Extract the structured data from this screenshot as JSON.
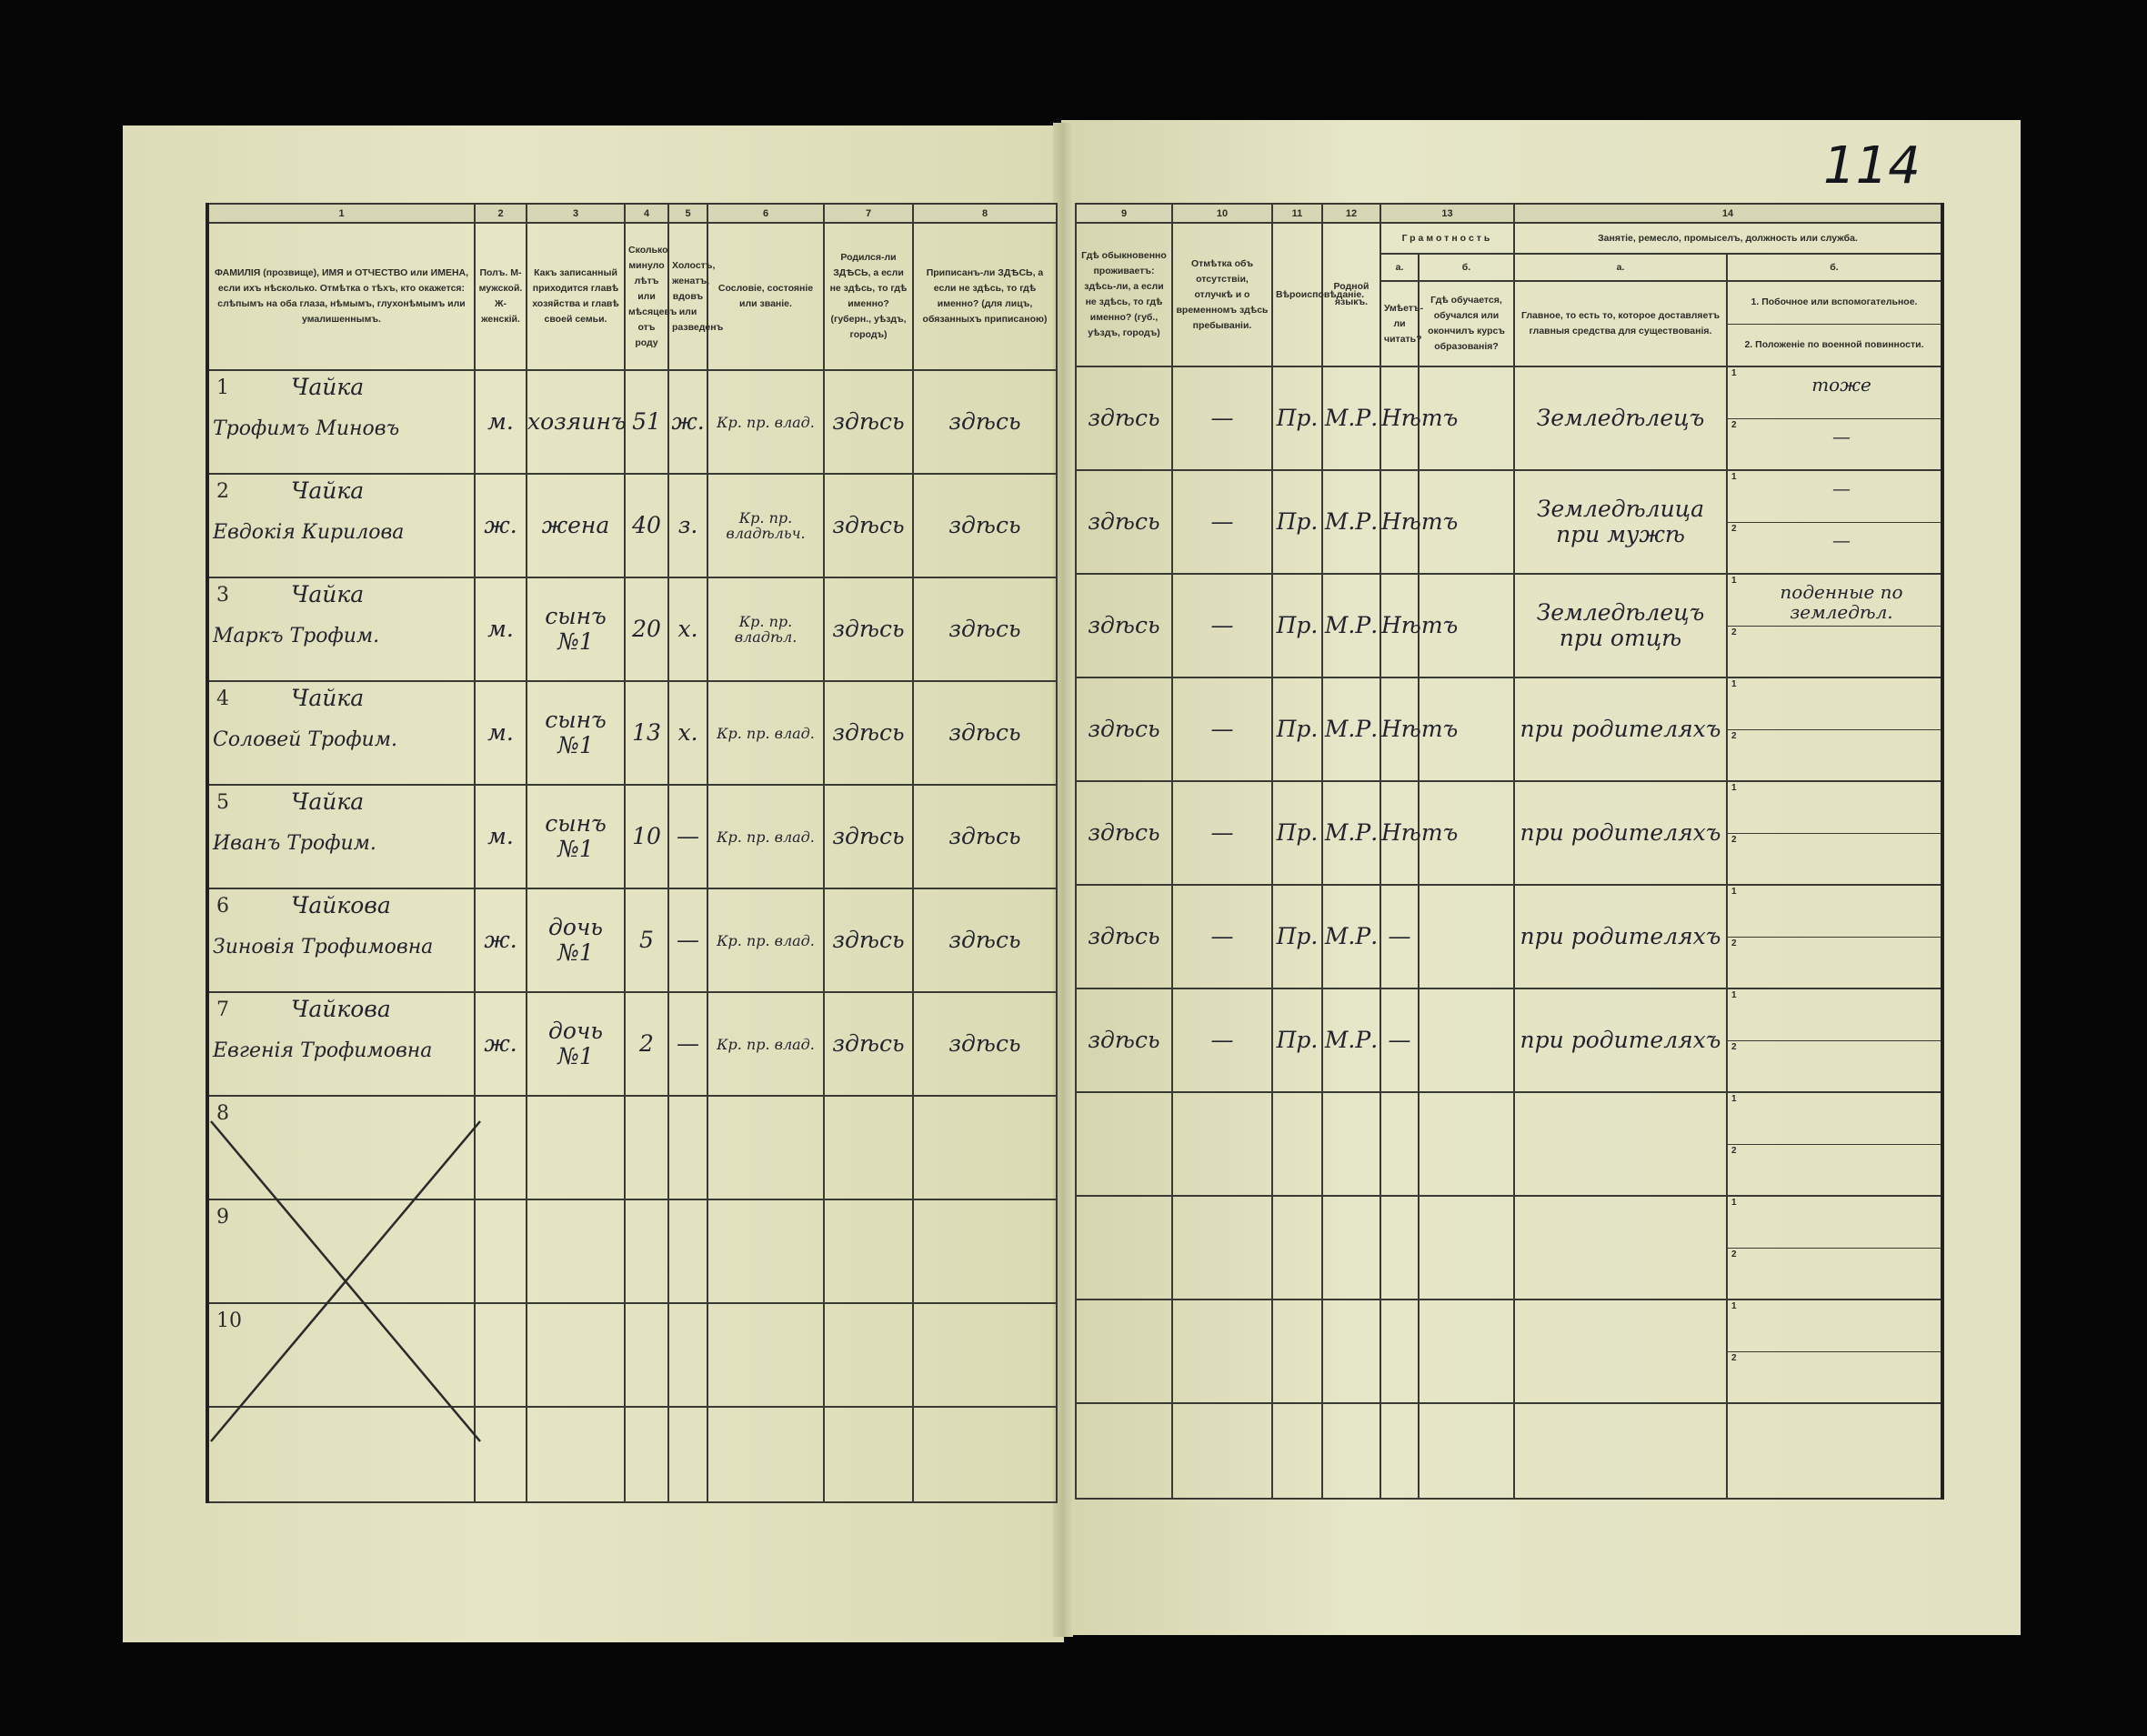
{
  "page_number": "114",
  "left_columns": [
    {
      "num": "1",
      "header": "ФАМИЛІЯ (прозвище), ИМЯ и ОТЧЕСТВО или ИМЕНА, если ихъ нѣсколько. Отмѣтка о тѣхъ, кто окажется: слѣпымъ на оба глаза, нѣмымъ, глухонѣмымъ или умалишеннымъ."
    },
    {
      "num": "2",
      "header": "Полъ. М-мужской. Ж-женскій."
    },
    {
      "num": "3",
      "header": "Какъ записанный приходится главѣ хозяйства и главѣ своей семьи."
    },
    {
      "num": "4",
      "header": "Сколько минуло лѣтъ или мѣсяцевъ отъ роду"
    },
    {
      "num": "5",
      "header": "Холостъ, женатъ, вдовъ или разведенъ"
    },
    {
      "num": "6",
      "header": "Сословіе, состояніе или званіе."
    },
    {
      "num": "7",
      "header": "Родился-ли ЗДѢСЬ, а если не здѣсь, то гдѣ именно? (губерн., уѣздъ, городъ)"
    },
    {
      "num": "8",
      "header": "Приписанъ-ли ЗДѢСЬ, а если не здѣсь, то гдѣ именно? (для лицъ, обязанныхъ приписаною)"
    }
  ],
  "right_columns": {
    "c9": {
      "num": "9",
      "header": "Гдѣ обыкновенно проживаетъ: здѣсь-ли, а если не здѣсь, то гдѣ именно? (губ., уѣздъ, городъ)"
    },
    "c10": {
      "num": "10",
      "header": "Отмѣтка объ отсутствіи, отлучкѣ и о временномъ здѣсь пребываніи."
    },
    "c11": {
      "num": "11",
      "header": "Вѣроисповѣданіе."
    },
    "c12": {
      "num": "12",
      "header": "Родной языкъ."
    },
    "c13": {
      "num": "13",
      "group": "Грамотность",
      "a": "а.",
      "a_header": "Умѣетъ-ли читать?",
      "b": "б.",
      "b_header": "Гдѣ обучается, обучался или окончилъ курсъ образованія?"
    },
    "c14": {
      "num": "14",
      "group": "Занятіе, ремесло, промыселъ, должность или служба.",
      "a": "а.",
      "a_header": "Главное, то есть то, которое доставляетъ главныя средства для существованія.",
      "b": "б.",
      "b_header_1": "1. Побочное или вспомогательное.",
      "b_header_2": "2. Положеніе по военной повинности."
    }
  },
  "rows": [
    {
      "n": "1",
      "surname": "Чайка",
      "given": "Трофимъ Миновъ",
      "sex": "м.",
      "relation": "хозяинъ",
      "age": "51",
      "marital": "ж.",
      "estate": "Кр. пр. влад.",
      "born": "здѣсь",
      "registered": "здѣсь",
      "resides": "здѣсь",
      "absence": "—",
      "religion": "Пр.",
      "language": "М.Р.",
      "literate": "Нѣтъ",
      "school": "",
      "occupation": "Земледѣлецъ",
      "side1": "тоже",
      "side2": "—"
    },
    {
      "n": "2",
      "surname": "Чайка",
      "given": "Евдокія Кирилова",
      "sex": "ж.",
      "relation": "жена",
      "age": "40",
      "marital": "з.",
      "estate": "Кр. пр. владѣльч.",
      "born": "здѣсь",
      "registered": "здѣсь",
      "resides": "здѣсь",
      "absence": "—",
      "religion": "Пр.",
      "language": "М.Р.",
      "literate": "Нѣтъ",
      "school": "",
      "occupation": "Земледѣлица при мужѣ",
      "side1": "—",
      "side2": "—"
    },
    {
      "n": "3",
      "surname": "Чайка",
      "given": "Маркъ Трофим.",
      "sex": "м.",
      "relation": "сынъ №1",
      "age": "20",
      "marital": "х.",
      "estate": "Кр. пр. владѣл.",
      "born": "здѣсь",
      "registered": "здѣсь",
      "resides": "здѣсь",
      "absence": "—",
      "religion": "Пр.",
      "language": "М.Р.",
      "literate": "Нѣтъ",
      "school": "",
      "occupation": "Земледѣлецъ при отцѣ",
      "side1": "поденные по земледѣл.",
      "side2": ""
    },
    {
      "n": "4",
      "surname": "Чайка",
      "given": "Соловей Трофим.",
      "sex": "м.",
      "relation": "сынъ №1",
      "age": "13",
      "marital": "х.",
      "estate": "Кр. пр. влад.",
      "born": "здѣсь",
      "registered": "здѣсь",
      "resides": "здѣсь",
      "absence": "—",
      "religion": "Пр.",
      "language": "М.Р.",
      "literate": "Нѣтъ",
      "school": "",
      "occupation": "при родителяхъ",
      "side1": "",
      "side2": ""
    },
    {
      "n": "5",
      "surname": "Чайка",
      "given": "Иванъ Трофим.",
      "sex": "м.",
      "relation": "сынъ №1",
      "age": "10",
      "marital": "—",
      "estate": "Кр. пр. влад.",
      "born": "здѣсь",
      "registered": "здѣсь",
      "resides": "здѣсь",
      "absence": "—",
      "religion": "Пр.",
      "language": "М.Р.",
      "literate": "Нѣтъ",
      "school": "",
      "occupation": "при родителяхъ",
      "side1": "",
      "side2": ""
    },
    {
      "n": "6",
      "surname": "Чайкова",
      "given": "Зиновія Трофимовна",
      "sex": "ж.",
      "relation": "дочь №1",
      "age": "5",
      "marital": "—",
      "estate": "Кр. пр. влад.",
      "born": "здѣсь",
      "registered": "здѣсь",
      "resides": "здѣсь",
      "absence": "—",
      "religion": "Пр.",
      "language": "М.Р.",
      "literate": "—",
      "school": "",
      "occupation": "при родителяхъ",
      "side1": "",
      "side2": ""
    },
    {
      "n": "7",
      "surname": "Чайкова",
      "given": "Евгенія Трофимовна",
      "sex": "ж.",
      "relation": "дочь №1",
      "age": "2",
      "marital": "—",
      "estate": "Кр. пр. влад.",
      "born": "здѣсь",
      "registered": "здѣсь",
      "resides": "здѣсь",
      "absence": "—",
      "religion": "Пр.",
      "language": "М.Р.",
      "literate": "—",
      "school": "",
      "occupation": "при родителяхъ",
      "side1": "",
      "side2": ""
    },
    {
      "n": "8"
    },
    {
      "n": "9"
    },
    {
      "n": "10"
    }
  ],
  "half_labels": [
    "1",
    "2"
  ],
  "colors": {
    "paper": "#e3e3c2",
    "ink": "#23232e",
    "background": "#050505"
  }
}
